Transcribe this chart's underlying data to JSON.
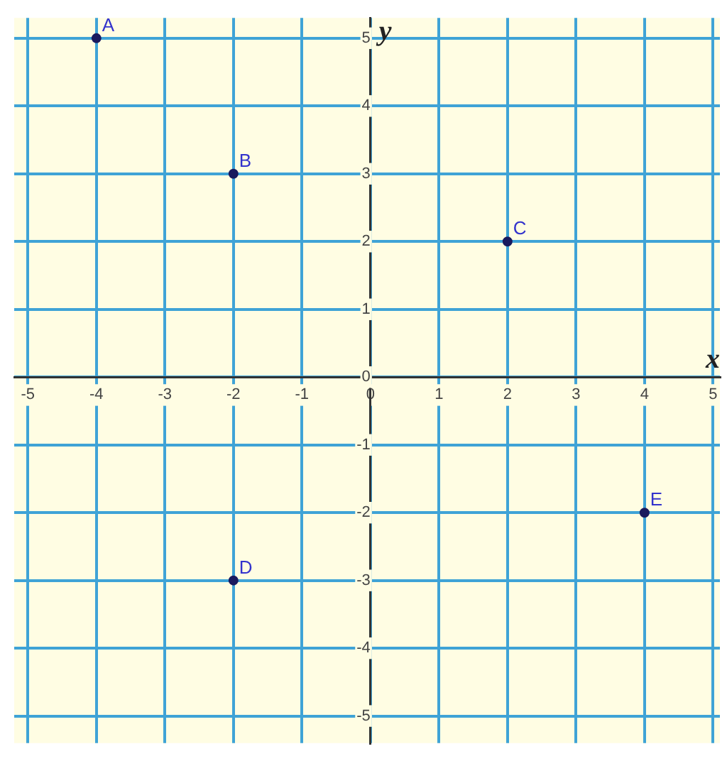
{
  "chart_data": {
    "type": "scatter",
    "xlabel": "x",
    "ylabel": "y",
    "x": [
      -4,
      -2,
      2,
      -2,
      4
    ],
    "series": [
      {
        "color": "#1a1a5e",
        "values": [
          5,
          3,
          2,
          -3,
          -2
        ]
      }
    ],
    "xlim": [
      -5.2,
      5.1
    ],
    "ylim": [
      -5.4,
      5.3
    ],
    "xticks": [
      -5,
      -4,
      -3,
      -2,
      -1,
      0,
      1,
      2,
      3,
      4,
      5
    ],
    "yticks": [
      -5,
      -4,
      -3,
      -2,
      -1,
      0,
      1,
      2,
      3,
      4,
      5
    ],
    "grid": true,
    "legend": false,
    "marker": "circle",
    "annotations": [
      {
        "text": "A",
        "x": -4,
        "y": 5
      },
      {
        "text": "B",
        "x": -2,
        "y": 3
      },
      {
        "text": "C",
        "x": 2,
        "y": 2
      },
      {
        "text": "D",
        "x": -2,
        "y": -3
      },
      {
        "text": "E",
        "x": 4,
        "y": -2
      }
    ]
  }
}
